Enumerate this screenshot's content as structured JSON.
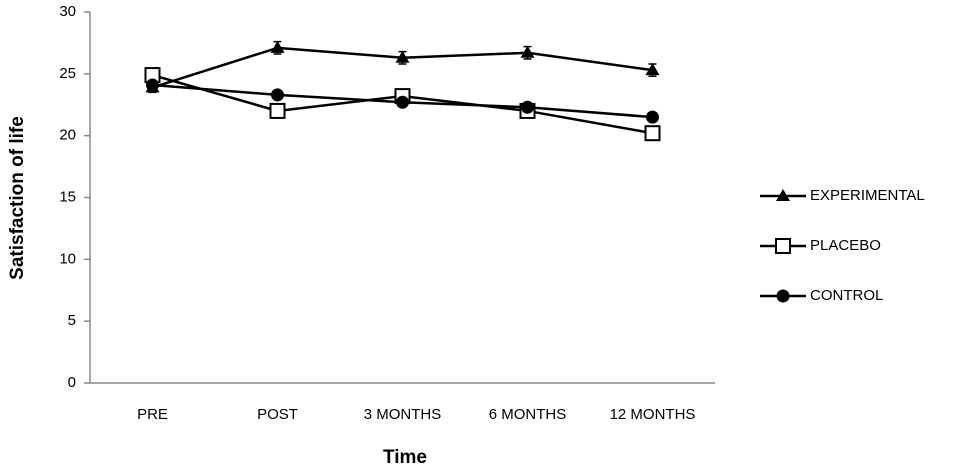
{
  "chart_data": {
    "type": "line",
    "y_label": "Satisfaction of life",
    "x_label": "Time",
    "categories": [
      "PRE",
      "POST",
      "3 MONTHS",
      "6 MONTHS",
      "12 MONTHS"
    ],
    "series": [
      {
        "name": "EXPERIMENTAL",
        "color": "#000000",
        "marker": "triangle",
        "values": [
          23.9,
          27.1,
          26.3,
          26.7,
          25.3
        ],
        "errors": [
          0.4,
          0.5,
          0.5,
          0.5,
          0.5
        ]
      },
      {
        "name": "PLACEBO",
        "color": "#000000",
        "marker": "square-open",
        "values": [
          24.9,
          22.0,
          23.2,
          22.0,
          20.2
        ]
      },
      {
        "name": "CONTROL",
        "color": "#000000",
        "marker": "circle",
        "values": [
          24.1,
          23.3,
          22.7,
          22.3,
          21.5
        ]
      }
    ],
    "ylim": [
      0,
      30
    ],
    "yticks": [
      0,
      5,
      10,
      15,
      20,
      25,
      30
    ],
    "grid": false,
    "legend": "right"
  }
}
